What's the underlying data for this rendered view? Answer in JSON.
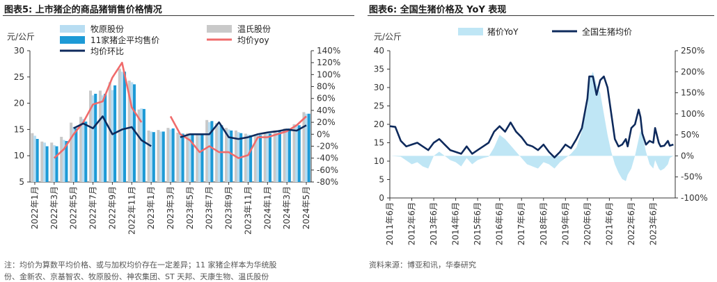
{
  "left": {
    "title": "图表5:  上市猪企的商品猪销售价格情况",
    "footnote": "注：均价为算数平均价格、或与加权均价存在一定差异；11 家猪企样本为华统股",
    "footnote2": "份、金新农、京基智农、牧原股份、神农集团、ST 天邦、天康生物、温氏股份",
    "chart_data": {
      "type": "bar",
      "y_left_unit": "元/公斤",
      "y_left_ticks": [
        "5",
        "10",
        "15",
        "20",
        "25",
        "30"
      ],
      "y_right_ticks": [
        "-80%",
        "-60%",
        "-40%",
        "-20%",
        "0%",
        "20%",
        "40%",
        "60%",
        "80%",
        "100%",
        "120%",
        "140%"
      ],
      "ylim_left": [
        5,
        30
      ],
      "ylim_right": [
        -80,
        140
      ],
      "x_tick_labels": [
        "2022年1月",
        "2022年3月",
        "2022年5月",
        "2022年7月",
        "2022年9月",
        "2022年11月",
        "2023年1月",
        "2023年3月",
        "2023年5月",
        "2023年7月",
        "2023年9月",
        "2023年11月",
        "2024年1月",
        "2024年3月",
        "2024年5月"
      ],
      "legend": [
        "牧原股份",
        "温氏股份",
        "11家猪企平均售价",
        "均价yoy",
        "均价环比"
      ],
      "colors": {
        "muyuan": "#b8ddf2",
        "wens": "#c9c9c9",
        "avg": "#1d9ad6",
        "yoy": "#f06b6b",
        "mom": "#0e2a5c"
      },
      "series": [
        {
          "name": "牧原股份",
          "values": [
            13.8,
            12.5,
            12.0,
            13.0,
            15.5,
            17.0,
            21.5,
            21.5,
            22.5,
            26.0,
            24.0,
            19.0,
            14.6,
            14.6,
            15.0,
            14.2,
            14.0,
            14.0,
            16.4,
            15.8,
            15.0,
            14.5,
            14.0,
            13.9,
            14.2,
            14.4,
            15.0,
            15.6,
            18.0
          ]
        },
        {
          "name": "温氏股份",
          "values": [
            14.3,
            12.7,
            12.5,
            13.6,
            16.3,
            17.4,
            22.4,
            22.4,
            24.0,
            26.6,
            24.3,
            18.8,
            14.8,
            14.9,
            15.3,
            14.4,
            14.3,
            14.2,
            16.8,
            16.2,
            15.3,
            14.8,
            14.2,
            14.1,
            14.4,
            14.8,
            15.2,
            16.0,
            18.3
          ]
        },
        {
          "name": "11家猪企平均售价",
          "values": [
            13.2,
            11.8,
            11.8,
            12.8,
            15.2,
            16.5,
            21.8,
            21.8,
            23.4,
            26.0,
            23.6,
            18.9,
            14.5,
            14.6,
            15.2,
            14.2,
            14.1,
            14.2,
            16.6,
            15.8,
            14.8,
            14.3,
            13.9,
            13.9,
            14.2,
            14.6,
            15.2,
            15.8,
            18.0
          ]
        },
        {
          "name": "均价yoy",
          "values": [
            null,
            null,
            -40,
            -25,
            0,
            20,
            50,
            55,
            95,
            120,
            45,
            20,
            null,
            null,
            30,
            0,
            -10,
            -30,
            -20,
            -30,
            -30,
            -40,
            -35,
            -5,
            -5,
            0,
            5,
            15,
            30
          ]
        },
        {
          "name": "均价环比",
          "values": [
            null,
            null,
            null,
            null,
            10,
            18,
            10,
            30,
            0,
            8,
            12,
            -10,
            -20,
            null,
            null,
            -5,
            0,
            0,
            0,
            20,
            -5,
            -8,
            -5,
            0,
            3,
            5,
            8,
            6,
            15
          ]
        }
      ]
    }
  },
  "right": {
    "title": "图表6:  全国生猪价格及 YoY 表现",
    "footnote": "资料来源：博亚和讯，华泰研究",
    "chart_data": {
      "type": "line",
      "y_left_unit": "元/公斤",
      "y_left_ticks": [
        "0",
        "5",
        "10",
        "15",
        "20",
        "25",
        "30",
        "35",
        "40"
      ],
      "y_right_ticks": [
        "-100%",
        "-50%",
        "0%",
        "50%",
        "100%",
        "150%",
        "200%",
        "250%"
      ],
      "ylim_left": [
        0,
        40
      ],
      "ylim_right": [
        -100,
        250
      ],
      "x_tick_labels": [
        "2011年6月",
        "2012年6月",
        "2013年6月",
        "2014年6月",
        "2015年6月",
        "2016年6月",
        "2017年6月",
        "2018年6月",
        "2019年6月",
        "2020年6月",
        "2021年6月",
        "2022年6月",
        "2023年6月"
      ],
      "legend": [
        "猪价YoY",
        "全国生猪均价"
      ],
      "colors": {
        "yoy": "#bfe6f5",
        "price": "#0e2a5c"
      },
      "price_points": [
        [
          0,
          19.5
        ],
        [
          3,
          19.3
        ],
        [
          6,
          15.5
        ],
        [
          9,
          14
        ],
        [
          12,
          14.5
        ],
        [
          15,
          15
        ],
        [
          18,
          14
        ],
        [
          21,
          13
        ],
        [
          24,
          15
        ],
        [
          27,
          16
        ],
        [
          30,
          14.5
        ],
        [
          33,
          13
        ],
        [
          36,
          12.5
        ],
        [
          39,
          12
        ],
        [
          42,
          14
        ],
        [
          45,
          12
        ],
        [
          48,
          13
        ],
        [
          51,
          14
        ],
        [
          54,
          15
        ],
        [
          57,
          18
        ],
        [
          60,
          19.5
        ],
        [
          63,
          18
        ],
        [
          66,
          20.5
        ],
        [
          69,
          18
        ],
        [
          72,
          16.5
        ],
        [
          75,
          14.5
        ],
        [
          78,
          14
        ],
        [
          81,
          13
        ],
        [
          84,
          14.5
        ],
        [
          87,
          12.5
        ],
        [
          90,
          11
        ],
        [
          93,
          12.5
        ],
        [
          96,
          14.5
        ],
        [
          99,
          13.5
        ],
        [
          102,
          16
        ],
        [
          105,
          19
        ],
        [
          108,
          27
        ],
        [
          109,
          33
        ],
        [
          111,
          33
        ],
        [
          113,
          28
        ],
        [
          115,
          32
        ],
        [
          117,
          33
        ],
        [
          119,
          30
        ],
        [
          121,
          23
        ],
        [
          123,
          16
        ],
        [
          125,
          14
        ],
        [
          127,
          14.5
        ],
        [
          129,
          16
        ],
        [
          130,
          14
        ],
        [
          132,
          19
        ],
        [
          134,
          20
        ],
        [
          136,
          24
        ],
        [
          137,
          22
        ],
        [
          138,
          17.5
        ],
        [
          140,
          14.5
        ],
        [
          142,
          15.5
        ],
        [
          144,
          15
        ],
        [
          145,
          19
        ],
        [
          147,
          15
        ],
        [
          148,
          14
        ],
        [
          150,
          14.2
        ],
        [
          152,
          15.5
        ],
        [
          153,
          14.2
        ],
        [
          155,
          14.5
        ]
      ],
      "yoy_points": [
        [
          0,
          0
        ],
        [
          6,
          -2
        ],
        [
          12,
          -20
        ],
        [
          15,
          -15
        ],
        [
          18,
          -25
        ],
        [
          21,
          -30
        ],
        [
          24,
          0
        ],
        [
          27,
          10
        ],
        [
          30,
          0
        ],
        [
          33,
          -10
        ],
        [
          36,
          -15
        ],
        [
          39,
          -25
        ],
        [
          42,
          -5
        ],
        [
          45,
          -20
        ],
        [
          48,
          -10
        ],
        [
          51,
          -5
        ],
        [
          54,
          -2
        ],
        [
          57,
          20
        ],
        [
          60,
          50
        ],
        [
          63,
          40
        ],
        [
          66,
          25
        ],
        [
          69,
          10
        ],
        [
          72,
          -5
        ],
        [
          75,
          -20
        ],
        [
          78,
          -25
        ],
        [
          81,
          -30
        ],
        [
          84,
          -15
        ],
        [
          87,
          -20
        ],
        [
          90,
          -30
        ],
        [
          93,
          -15
        ],
        [
          96,
          -5
        ],
        [
          99,
          5
        ],
        [
          102,
          20
        ],
        [
          105,
          60
        ],
        [
          108,
          120
        ],
        [
          109,
          180
        ],
        [
          111,
          200
        ],
        [
          113,
          170
        ],
        [
          115,
          150
        ],
        [
          117,
          100
        ],
        [
          119,
          50
        ],
        [
          121,
          10
        ],
        [
          123,
          -20
        ],
        [
          125,
          -40
        ],
        [
          127,
          -55
        ],
        [
          129,
          -60
        ],
        [
          130,
          -45
        ],
        [
          132,
          -30
        ],
        [
          134,
          0
        ],
        [
          136,
          40
        ],
        [
          137,
          60
        ],
        [
          138,
          50
        ],
        [
          140,
          10
        ],
        [
          142,
          -20
        ],
        [
          144,
          -30
        ],
        [
          145,
          -10
        ],
        [
          147,
          -30
        ],
        [
          148,
          -35
        ],
        [
          150,
          -30
        ],
        [
          152,
          -20
        ],
        [
          153,
          -5
        ],
        [
          155,
          0
        ]
      ]
    }
  }
}
